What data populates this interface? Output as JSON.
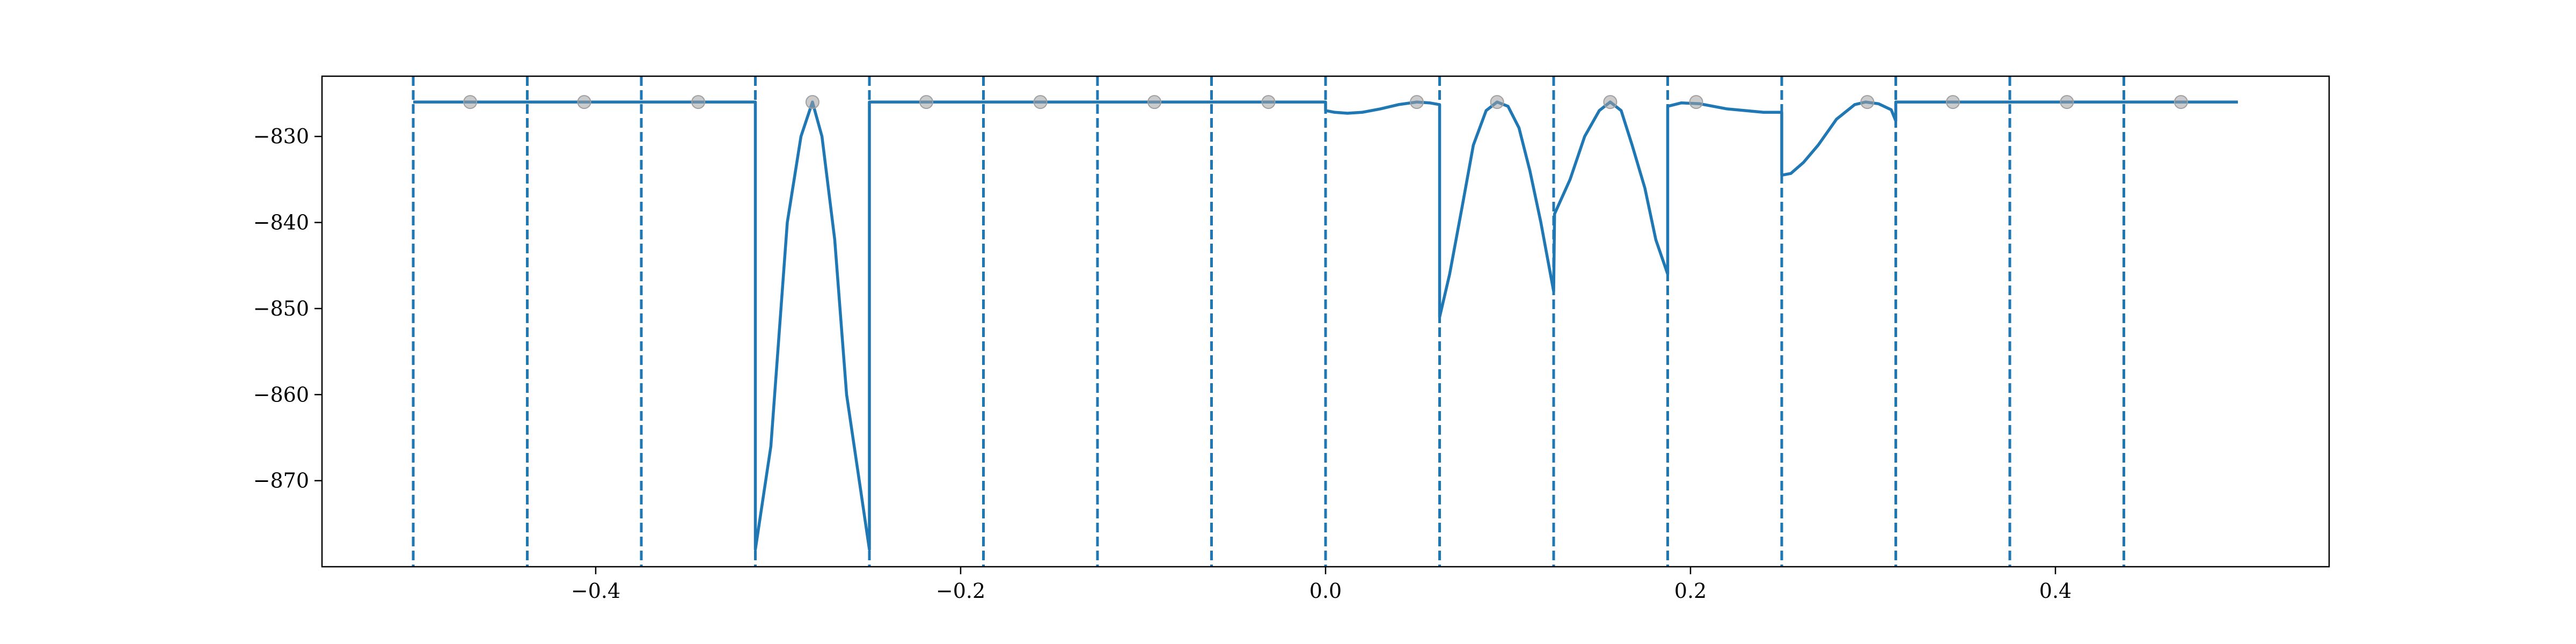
{
  "chart_data": {
    "type": "line",
    "title": "",
    "xlabel": "",
    "ylabel": "",
    "xlim": [
      -0.55,
      0.55
    ],
    "ylim": [
      -880,
      -823
    ],
    "grid": false,
    "legend": "none",
    "colors": {
      "line": "#1f77b4",
      "marker": "#a0a0a0",
      "divider": "#1f77b4",
      "axis": "#000000"
    },
    "x_ticks": [
      {
        "value": -0.4,
        "label": "−0.4"
      },
      {
        "value": -0.2,
        "label": "−0.2"
      },
      {
        "value": 0.0,
        "label": "0.0"
      },
      {
        "value": 0.2,
        "label": "0.2"
      },
      {
        "value": 0.4,
        "label": "0.4"
      }
    ],
    "y_ticks": [
      {
        "value": -830,
        "label": "−830"
      },
      {
        "value": -840,
        "label": "−840"
      },
      {
        "value": -850,
        "label": "−850"
      },
      {
        "value": -860,
        "label": "−860"
      },
      {
        "value": -870,
        "label": "−870"
      }
    ],
    "dividers": [
      -0.5,
      -0.4375,
      -0.375,
      -0.3125,
      -0.25,
      -0.1875,
      -0.125,
      -0.0625,
      0.0,
      0.0625,
      0.125,
      0.1875,
      0.25,
      0.3125,
      0.375,
      0.4375
    ],
    "divider_style": "dashed",
    "series": [
      {
        "style": "solid",
        "x": [
          -0.5,
          -0.3125,
          -0.3125,
          -0.304,
          -0.295,
          -0.2875,
          -0.2812,
          -0.276,
          -0.269,
          -0.2625,
          -0.25,
          -0.25,
          0.0,
          0.0,
          0.005,
          0.012,
          0.02,
          0.03,
          0.04,
          0.05,
          0.057,
          0.0625,
          0.0625,
          0.0625,
          0.068,
          0.075,
          0.081,
          0.088,
          0.094,
          0.1,
          0.106,
          0.112,
          0.118,
          0.125,
          0.125,
          0.1255,
          0.134,
          0.142,
          0.15,
          0.156,
          0.162,
          0.168,
          0.175,
          0.181,
          0.1875,
          0.1875,
          0.195,
          0.205,
          0.22,
          0.24,
          0.25,
          0.25,
          0.255,
          0.262,
          0.27,
          0.28,
          0.29,
          0.296,
          0.303,
          0.31,
          0.3125,
          0.3125,
          0.5
        ],
        "y": [
          -826,
          -826,
          -878,
          -866,
          -840,
          -830,
          -826,
          -830,
          -842,
          -860,
          -878,
          -826,
          -826,
          -827,
          -827.2,
          -827.3,
          -827.2,
          -826.8,
          -826.3,
          -826,
          -826.1,
          -826.3,
          -851,
          -851,
          -846,
          -838,
          -831,
          -827,
          -826,
          -826.5,
          -829,
          -834,
          -840,
          -848,
          -848,
          -839,
          -835,
          -830,
          -827,
          -826,
          -827,
          -831,
          -836,
          -842,
          -846,
          -826.5,
          -826.1,
          -826.2,
          -826.8,
          -827.2,
          -827.2,
          -834.5,
          -834.3,
          -833,
          -831,
          -828,
          -826.3,
          -826,
          -826.2,
          -826.9,
          -828.2,
          -826,
          -826
        ]
      }
    ],
    "markers": {
      "style": "circle",
      "x": [
        -0.4688,
        -0.4063,
        -0.3438,
        -0.2812,
        -0.2188,
        -0.1563,
        -0.0938,
        -0.0313,
        0.05,
        0.094,
        0.156,
        0.2031,
        0.2969,
        0.3438,
        0.4063,
        0.4688
      ],
      "y": [
        -826,
        -826,
        -826,
        -826,
        -826,
        -826,
        -826,
        -826,
        -826,
        -826,
        -826,
        -826,
        -826,
        -826,
        -826,
        -826
      ]
    }
  }
}
